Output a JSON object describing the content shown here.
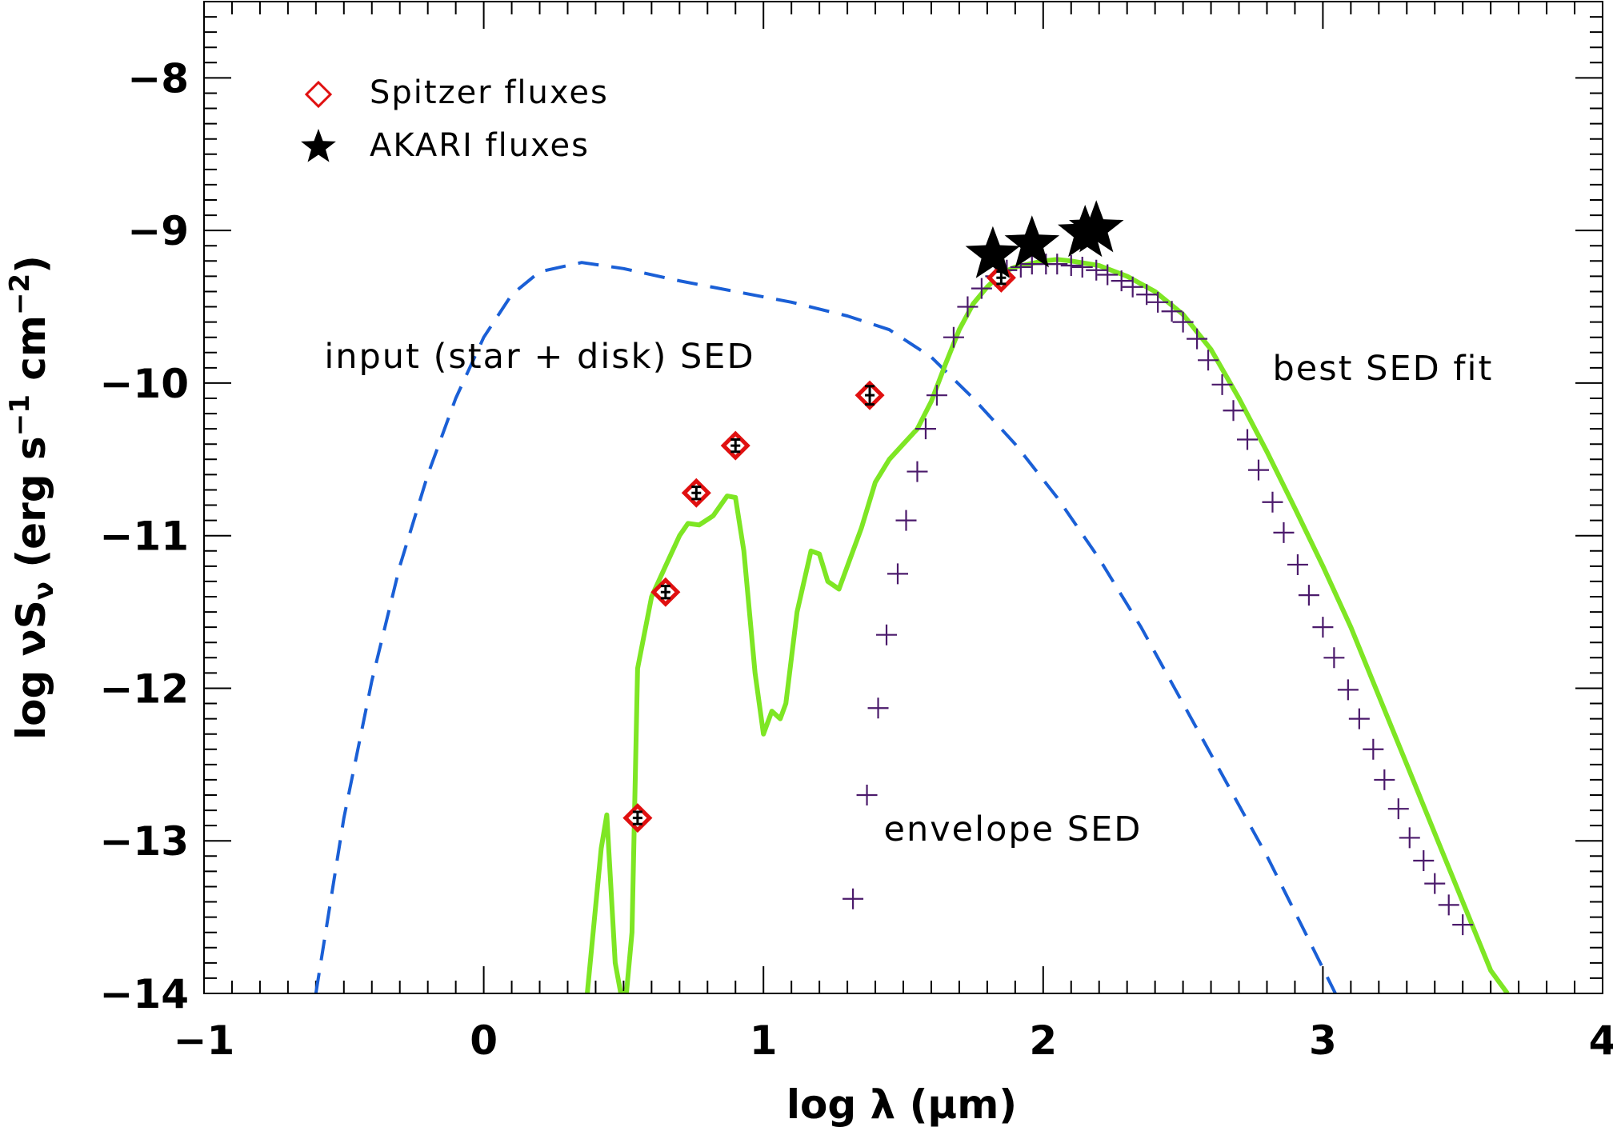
{
  "chart_data": {
    "type": "line",
    "title": "",
    "xlabel": "log λ (μm)",
    "ylabel": "log νS",
    "ylabel_sub": "ν",
    "ylabel_units": " (erg s",
    "ylabel_exp1": "−1",
    "ylabel_mid": " cm",
    "ylabel_exp2": "−2",
    "ylabel_close": ")",
    "xlim": [
      -1,
      4
    ],
    "ylim": [
      -14,
      -7.5
    ],
    "grid": false,
    "legend_position": "top-left",
    "x_ticks": [
      {
        "value": -1,
        "label": "−1"
      },
      {
        "value": 0,
        "label": "0"
      },
      {
        "value": 1,
        "label": "1"
      },
      {
        "value": 2,
        "label": "2"
      },
      {
        "value": 3,
        "label": "3"
      },
      {
        "value": 4,
        "label": "4"
      }
    ],
    "y_ticks": [
      {
        "value": -8,
        "label": "−8"
      },
      {
        "value": -9,
        "label": "−9"
      },
      {
        "value": -10,
        "label": "−10"
      },
      {
        "value": -11,
        "label": "−11"
      },
      {
        "value": -12,
        "label": "−12"
      },
      {
        "value": -13,
        "label": "−13"
      },
      {
        "value": -14,
        "label": "−14"
      }
    ],
    "legend": [
      {
        "label": "Spitzer fluxes",
        "marker": "diamond",
        "color": "#e01010"
      },
      {
        "label": "AKARI fluxes",
        "marker": "star",
        "color": "#000000"
      }
    ],
    "annotations": [
      {
        "text": "input (star + disk) SED",
        "x": -0.57,
        "y": -9.9
      },
      {
        "text": "best SED fit",
        "x": 2.82,
        "y": -9.98
      },
      {
        "text": "envelope SED",
        "x": 1.43,
        "y": -13.0
      }
    ],
    "series": [
      {
        "style": "dashed",
        "color": "#1a5fd6",
        "x": [
          -0.6,
          -0.5,
          -0.4,
          -0.3,
          -0.2,
          -0.1,
          0.0,
          0.1,
          0.2,
          0.35,
          0.5,
          0.7,
          0.9,
          1.1,
          1.3,
          1.45,
          1.6,
          1.75,
          1.9,
          2.05,
          2.2,
          2.35,
          2.5,
          2.65,
          2.8,
          2.95,
          3.05
        ],
        "y": [
          -14.0,
          -12.85,
          -11.95,
          -11.2,
          -10.6,
          -10.1,
          -9.7,
          -9.42,
          -9.27,
          -9.21,
          -9.25,
          -9.33,
          -9.4,
          -9.47,
          -9.56,
          -9.65,
          -9.83,
          -10.1,
          -10.4,
          -10.75,
          -11.15,
          -11.6,
          -12.1,
          -12.6,
          -13.1,
          -13.65,
          -14.02
        ]
      },
      {
        "style": "solid",
        "color": "#7ee624",
        "x": [
          0.37,
          0.42,
          0.44,
          0.47,
          0.49,
          0.51,
          0.53,
          0.55,
          0.6,
          0.65,
          0.7,
          0.73,
          0.77,
          0.82,
          0.87,
          0.9,
          0.93,
          0.97,
          1.0,
          1.03,
          1.06,
          1.08,
          1.12,
          1.17,
          1.2,
          1.23,
          1.27,
          1.3,
          1.35,
          1.4,
          1.45,
          1.5,
          1.55,
          1.6,
          1.65,
          1.7,
          1.75,
          1.8,
          1.85,
          1.9,
          1.95,
          2.0,
          2.05,
          2.1,
          2.2,
          2.3,
          2.4,
          2.5,
          2.6,
          2.7,
          2.8,
          2.9,
          3.0,
          3.1,
          3.2,
          3.3,
          3.4,
          3.5,
          3.6,
          3.66
        ],
        "y": [
          -14.0,
          -13.05,
          -12.83,
          -13.8,
          -14.0,
          -14.0,
          -13.6,
          -11.87,
          -11.4,
          -11.2,
          -11.0,
          -10.92,
          -10.93,
          -10.87,
          -10.74,
          -10.75,
          -11.1,
          -11.9,
          -12.3,
          -12.15,
          -12.2,
          -12.1,
          -11.5,
          -11.1,
          -11.12,
          -11.3,
          -11.35,
          -11.2,
          -10.95,
          -10.65,
          -10.5,
          -10.4,
          -10.3,
          -10.12,
          -9.88,
          -9.65,
          -9.48,
          -9.37,
          -9.28,
          -9.24,
          -9.22,
          -9.2,
          -9.19,
          -9.2,
          -9.23,
          -9.3,
          -9.4,
          -9.55,
          -9.78,
          -10.1,
          -10.45,
          -10.82,
          -11.2,
          -11.6,
          -12.05,
          -12.5,
          -12.95,
          -13.4,
          -13.85,
          -14.0
        ]
      }
    ],
    "envelope_sed": {
      "marker": "plus",
      "color": "#4b1a6b",
      "x": [
        1.32,
        1.37,
        1.41,
        1.44,
        1.48,
        1.51,
        1.55,
        1.58,
        1.62,
        1.68,
        1.73,
        1.78,
        1.83,
        1.87,
        1.92,
        1.96,
        2.01,
        2.05,
        2.1,
        2.14,
        2.19,
        2.23,
        2.28,
        2.32,
        2.37,
        2.41,
        2.46,
        2.5,
        2.55,
        2.59,
        2.64,
        2.68,
        2.73,
        2.77,
        2.82,
        2.86,
        2.91,
        2.95,
        3.0,
        3.04,
        3.09,
        3.13,
        3.18,
        3.22,
        3.27,
        3.31,
        3.36,
        3.4,
        3.45,
        3.5
      ],
      "y": [
        -13.38,
        -12.7,
        -12.13,
        -11.65,
        -11.25,
        -10.9,
        -10.58,
        -10.3,
        -10.08,
        -9.7,
        -9.5,
        -9.38,
        -9.3,
        -9.26,
        -9.24,
        -9.22,
        -9.22,
        -9.22,
        -9.23,
        -9.24,
        -9.26,
        -9.29,
        -9.33,
        -9.37,
        -9.42,
        -9.47,
        -9.53,
        -9.6,
        -9.71,
        -9.85,
        -10.01,
        -10.18,
        -10.37,
        -10.57,
        -10.78,
        -10.98,
        -11.19,
        -11.39,
        -11.6,
        -11.8,
        -12.01,
        -12.2,
        -12.4,
        -12.6,
        -12.79,
        -12.98,
        -13.13,
        -13.28,
        -13.42,
        -13.55
      ]
    },
    "spitzer_fluxes": {
      "x": [
        0.55,
        0.65,
        0.76,
        0.9,
        1.38,
        1.85
      ],
      "y": [
        -12.85,
        -11.37,
        -10.72,
        -10.41,
        -10.08,
        -9.31
      ],
      "err": [
        0.04,
        0.04,
        0.04,
        0.04,
        0.06,
        0.04
      ]
    },
    "akari_fluxes": {
      "x": [
        1.82,
        1.96,
        2.15,
        2.19
      ],
      "y": [
        -9.16,
        -9.09,
        -9.02,
        -8.99
      ]
    }
  }
}
